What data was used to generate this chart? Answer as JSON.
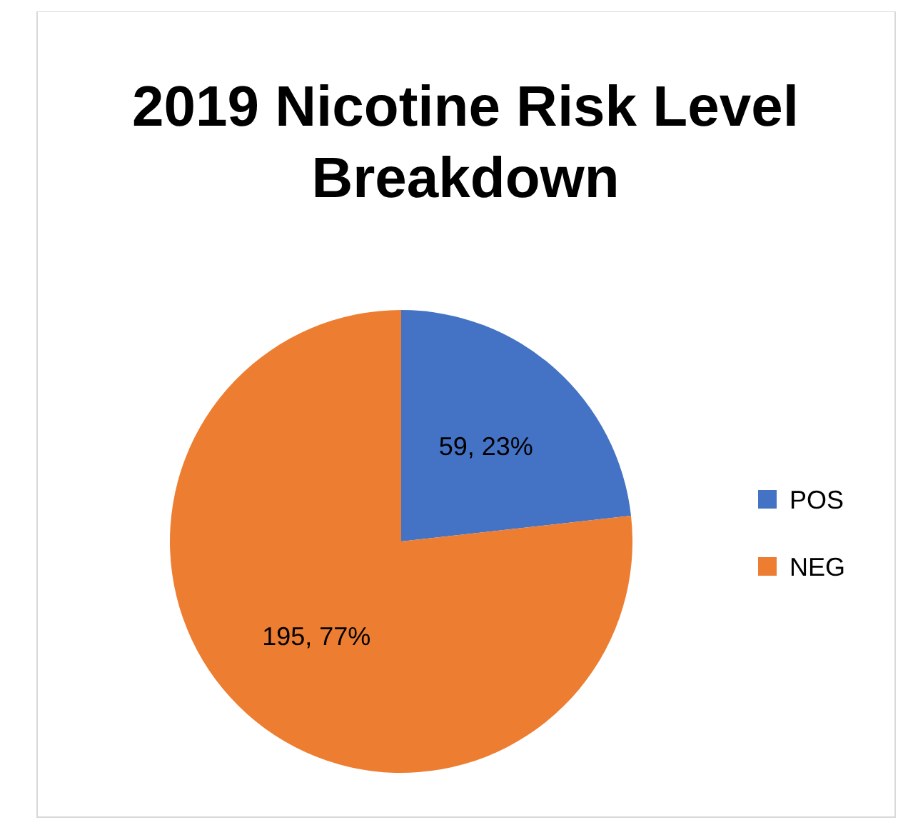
{
  "chart_data": {
    "type": "pie",
    "title": "2019 Nicotine Risk Level Breakdown",
    "categories": [
      "POS",
      "NEG"
    ],
    "values": [
      59,
      195
    ],
    "value_labels": [
      "59, 23%",
      "195, 77%"
    ],
    "colors": [
      "#4472c4",
      "#ed7d31"
    ],
    "legend": "right"
  }
}
